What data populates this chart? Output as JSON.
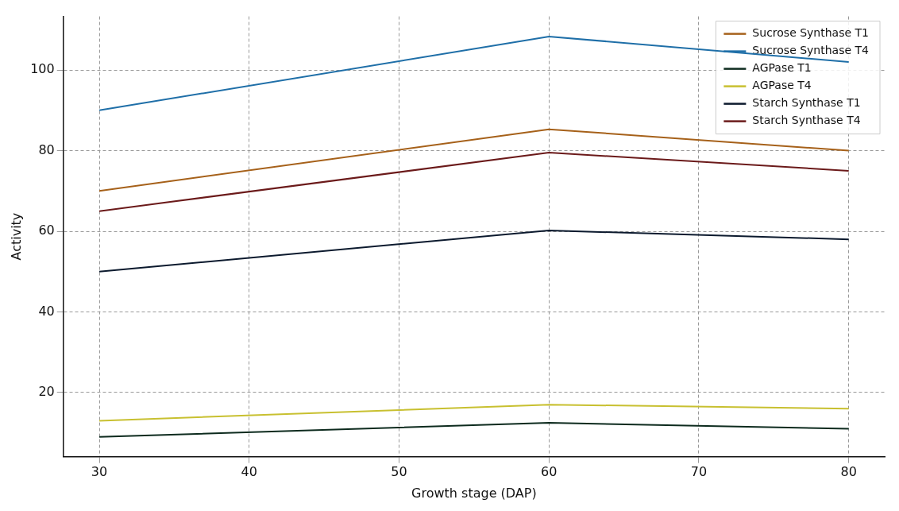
{
  "chart_data": {
    "type": "line",
    "xlabel": "Growth stage (DAP)",
    "ylabel": "Activity",
    "x": [
      30,
      60,
      80
    ],
    "series": [
      {
        "name": "Sucrose Synthase T1",
        "color": "#a6611a",
        "values": [
          70,
          85.3,
          80
        ]
      },
      {
        "name": "Sucrose Synthase T4",
        "color": "#1f6fa8",
        "values": [
          90,
          108.3,
          102
        ]
      },
      {
        "name": "AGPase T1",
        "color": "#0d2b1e",
        "values": [
          9,
          12.5,
          11
        ]
      },
      {
        "name": "AGPase T4",
        "color": "#c8c030",
        "values": [
          13,
          17,
          16
        ]
      },
      {
        "name": "Starch Synthase T1",
        "color": "#0c1a2e",
        "values": [
          50,
          60.2,
          58
        ]
      },
      {
        "name": "Starch Synthase T4",
        "color": "#6b1a1a",
        "values": [
          65,
          79.5,
          75
        ]
      }
    ],
    "xlim": [
      27.6,
      82.4
    ],
    "xticks": [
      30,
      40,
      50,
      60,
      70,
      80
    ],
    "ylim": [
      4.1,
      113.3
    ],
    "yticks": [
      20,
      40,
      60,
      80,
      100
    ],
    "grid": true,
    "legend": "top right",
    "marker": "none",
    "line_style": "solid"
  }
}
